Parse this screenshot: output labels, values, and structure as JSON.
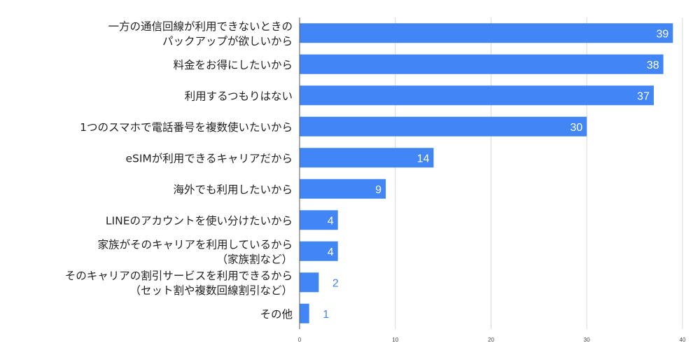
{
  "chart_data": {
    "type": "bar",
    "orientation": "horizontal",
    "title": "",
    "xlabel": "",
    "ylabel": "",
    "categories": [
      [
        "一方の通信回線が利用できないときの",
        "パックアップが欲しいから"
      ],
      [
        "料金をお得にしたいから"
      ],
      [
        "利用するつもりはない"
      ],
      [
        "1つのスマホで電話番号を複数使いたいから"
      ],
      [
        "eSIMが利用できるキャリアだから"
      ],
      [
        "海外でも利用したいから"
      ],
      [
        "LINEのアカウントを使い分けたいから"
      ],
      [
        "家族がそのキャリアを利用しているから",
        "（家族割など）"
      ],
      [
        "そのキャリアの割引サービスを利用できるから",
        "（セット割や複数回線割引など）"
      ],
      [
        "その他"
      ]
    ],
    "values": [
      39,
      38,
      37,
      30,
      14,
      9,
      4,
      4,
      2,
      1
    ],
    "xlim": [
      0,
      40
    ],
    "xticks": [
      "0",
      "10",
      "20",
      "30",
      "40"
    ],
    "grid": true,
    "legend": "none",
    "bar_color": "#4285f4",
    "label_inside_color": "#ffffff",
    "label_outside_color": "#4285f4"
  }
}
